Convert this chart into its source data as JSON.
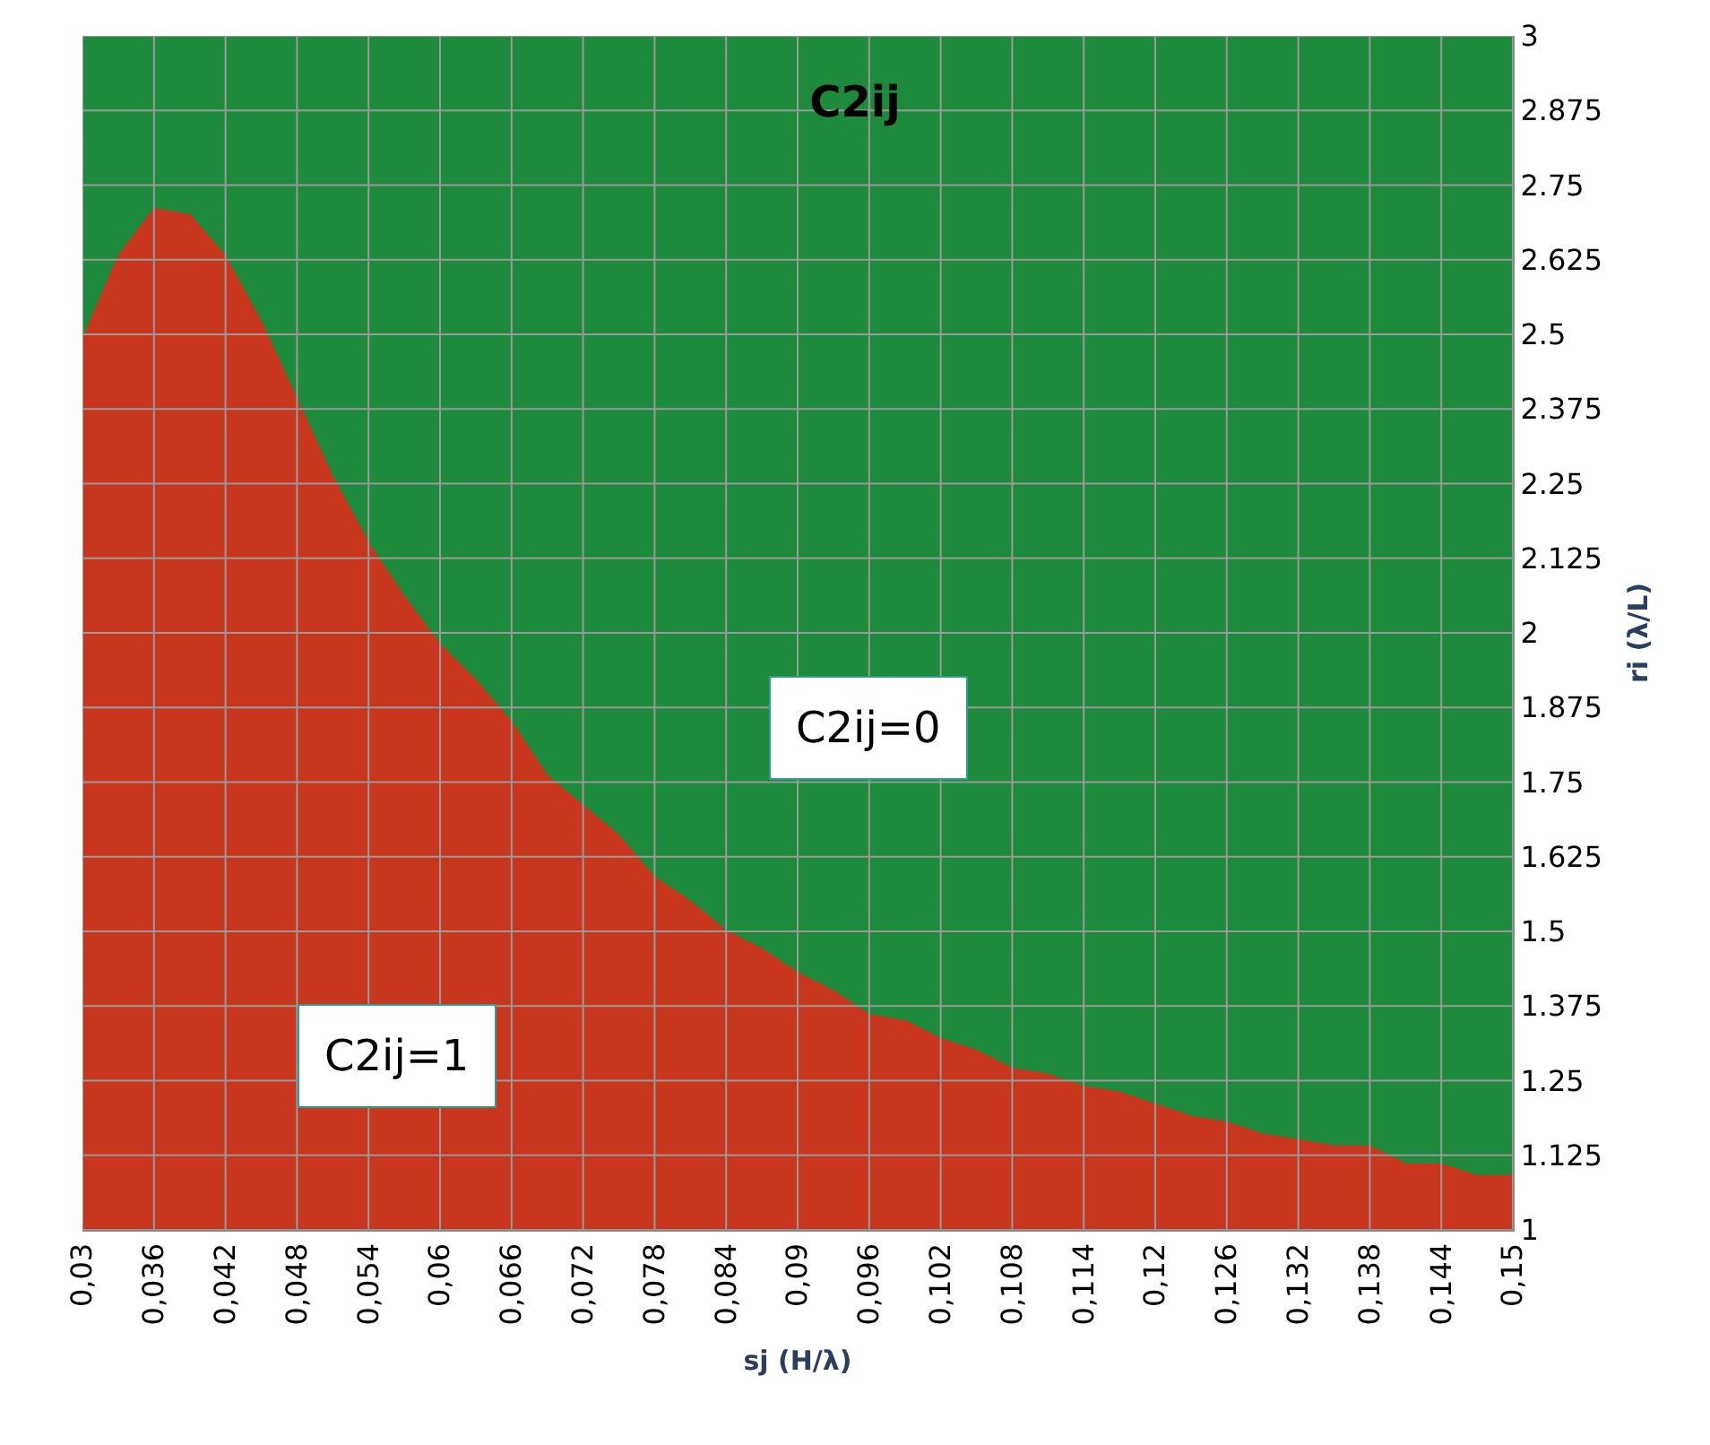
{
  "chart_data": {
    "type": "area",
    "title": "C2ij",
    "xlabel": "sj (H/λ)",
    "ylabel": "ri (λ/L)",
    "x": [
      0.03,
      0.033,
      0.036,
      0.039,
      0.042,
      0.045,
      0.048,
      0.051,
      0.054,
      0.057,
      0.06,
      0.063,
      0.066,
      0.069,
      0.072,
      0.075,
      0.078,
      0.081,
      0.084,
      0.087,
      0.09,
      0.093,
      0.096,
      0.099,
      0.102,
      0.105,
      0.108,
      0.111,
      0.114,
      0.117,
      0.12,
      0.123,
      0.126,
      0.129,
      0.132,
      0.135,
      0.138,
      0.141,
      0.144,
      0.147,
      0.15
    ],
    "series": [
      {
        "color": "#1e8a3c",
        "values": [
          3,
          3,
          3,
          3,
          3,
          3,
          3,
          3,
          3,
          3,
          3,
          3,
          3,
          3,
          3,
          3,
          3,
          3,
          3,
          3,
          3,
          3,
          3,
          3,
          3,
          3,
          3,
          3,
          3,
          3,
          3,
          3,
          3,
          3,
          3,
          3,
          3,
          3,
          3,
          3,
          3
        ]
      },
      {
        "color": "#c8361e",
        "values": [
          2.49,
          2.63,
          2.71,
          2.7,
          2.63,
          2.52,
          2.39,
          2.26,
          2.15,
          2.06,
          1.98,
          1.92,
          1.85,
          1.76,
          1.71,
          1.66,
          1.59,
          1.55,
          1.5,
          1.47,
          1.43,
          1.4,
          1.36,
          1.35,
          1.32,
          1.3,
          1.27,
          1.26,
          1.24,
          1.23,
          1.21,
          1.19,
          1.18,
          1.16,
          1.15,
          1.14,
          1.14,
          1.11,
          1.11,
          1.09,
          1.09
        ]
      }
    ],
    "xlim": [
      0.03,
      0.15
    ],
    "xticks": [
      {
        "value": 0.03,
        "label": "0,03"
      },
      {
        "value": 0.036,
        "label": "0,036"
      },
      {
        "value": 0.042,
        "label": "0,042"
      },
      {
        "value": 0.048,
        "label": "0,048"
      },
      {
        "value": 0.054,
        "label": "0,054"
      },
      {
        "value": 0.06,
        "label": "0,06"
      },
      {
        "value": 0.066,
        "label": "0,066"
      },
      {
        "value": 0.072,
        "label": "0,072"
      },
      {
        "value": 0.078,
        "label": "0,078"
      },
      {
        "value": 0.084,
        "label": "0,084"
      },
      {
        "value": 0.09,
        "label": "0,09"
      },
      {
        "value": 0.096,
        "label": "0,096"
      },
      {
        "value": 0.102,
        "label": "0,102"
      },
      {
        "value": 0.108,
        "label": "0,108"
      },
      {
        "value": 0.114,
        "label": "0,114"
      },
      {
        "value": 0.12,
        "label": "0,12"
      },
      {
        "value": 0.126,
        "label": "0,126"
      },
      {
        "value": 0.132,
        "label": "0,132"
      },
      {
        "value": 0.138,
        "label": "0,138"
      },
      {
        "value": 0.144,
        "label": "0,144"
      },
      {
        "value": 0.15,
        "label": "0,15"
      }
    ],
    "ylim": [
      1,
      3
    ],
    "yticks": [
      1,
      1.125,
      1.25,
      1.375,
      1.5,
      1.625,
      1.75,
      1.875,
      2,
      2.125,
      2.25,
      2.375,
      2.5,
      2.625,
      2.75,
      2.875,
      3
    ],
    "grid": true,
    "annotations": [
      "C2ij=0",
      "C2ij=1"
    ]
  }
}
